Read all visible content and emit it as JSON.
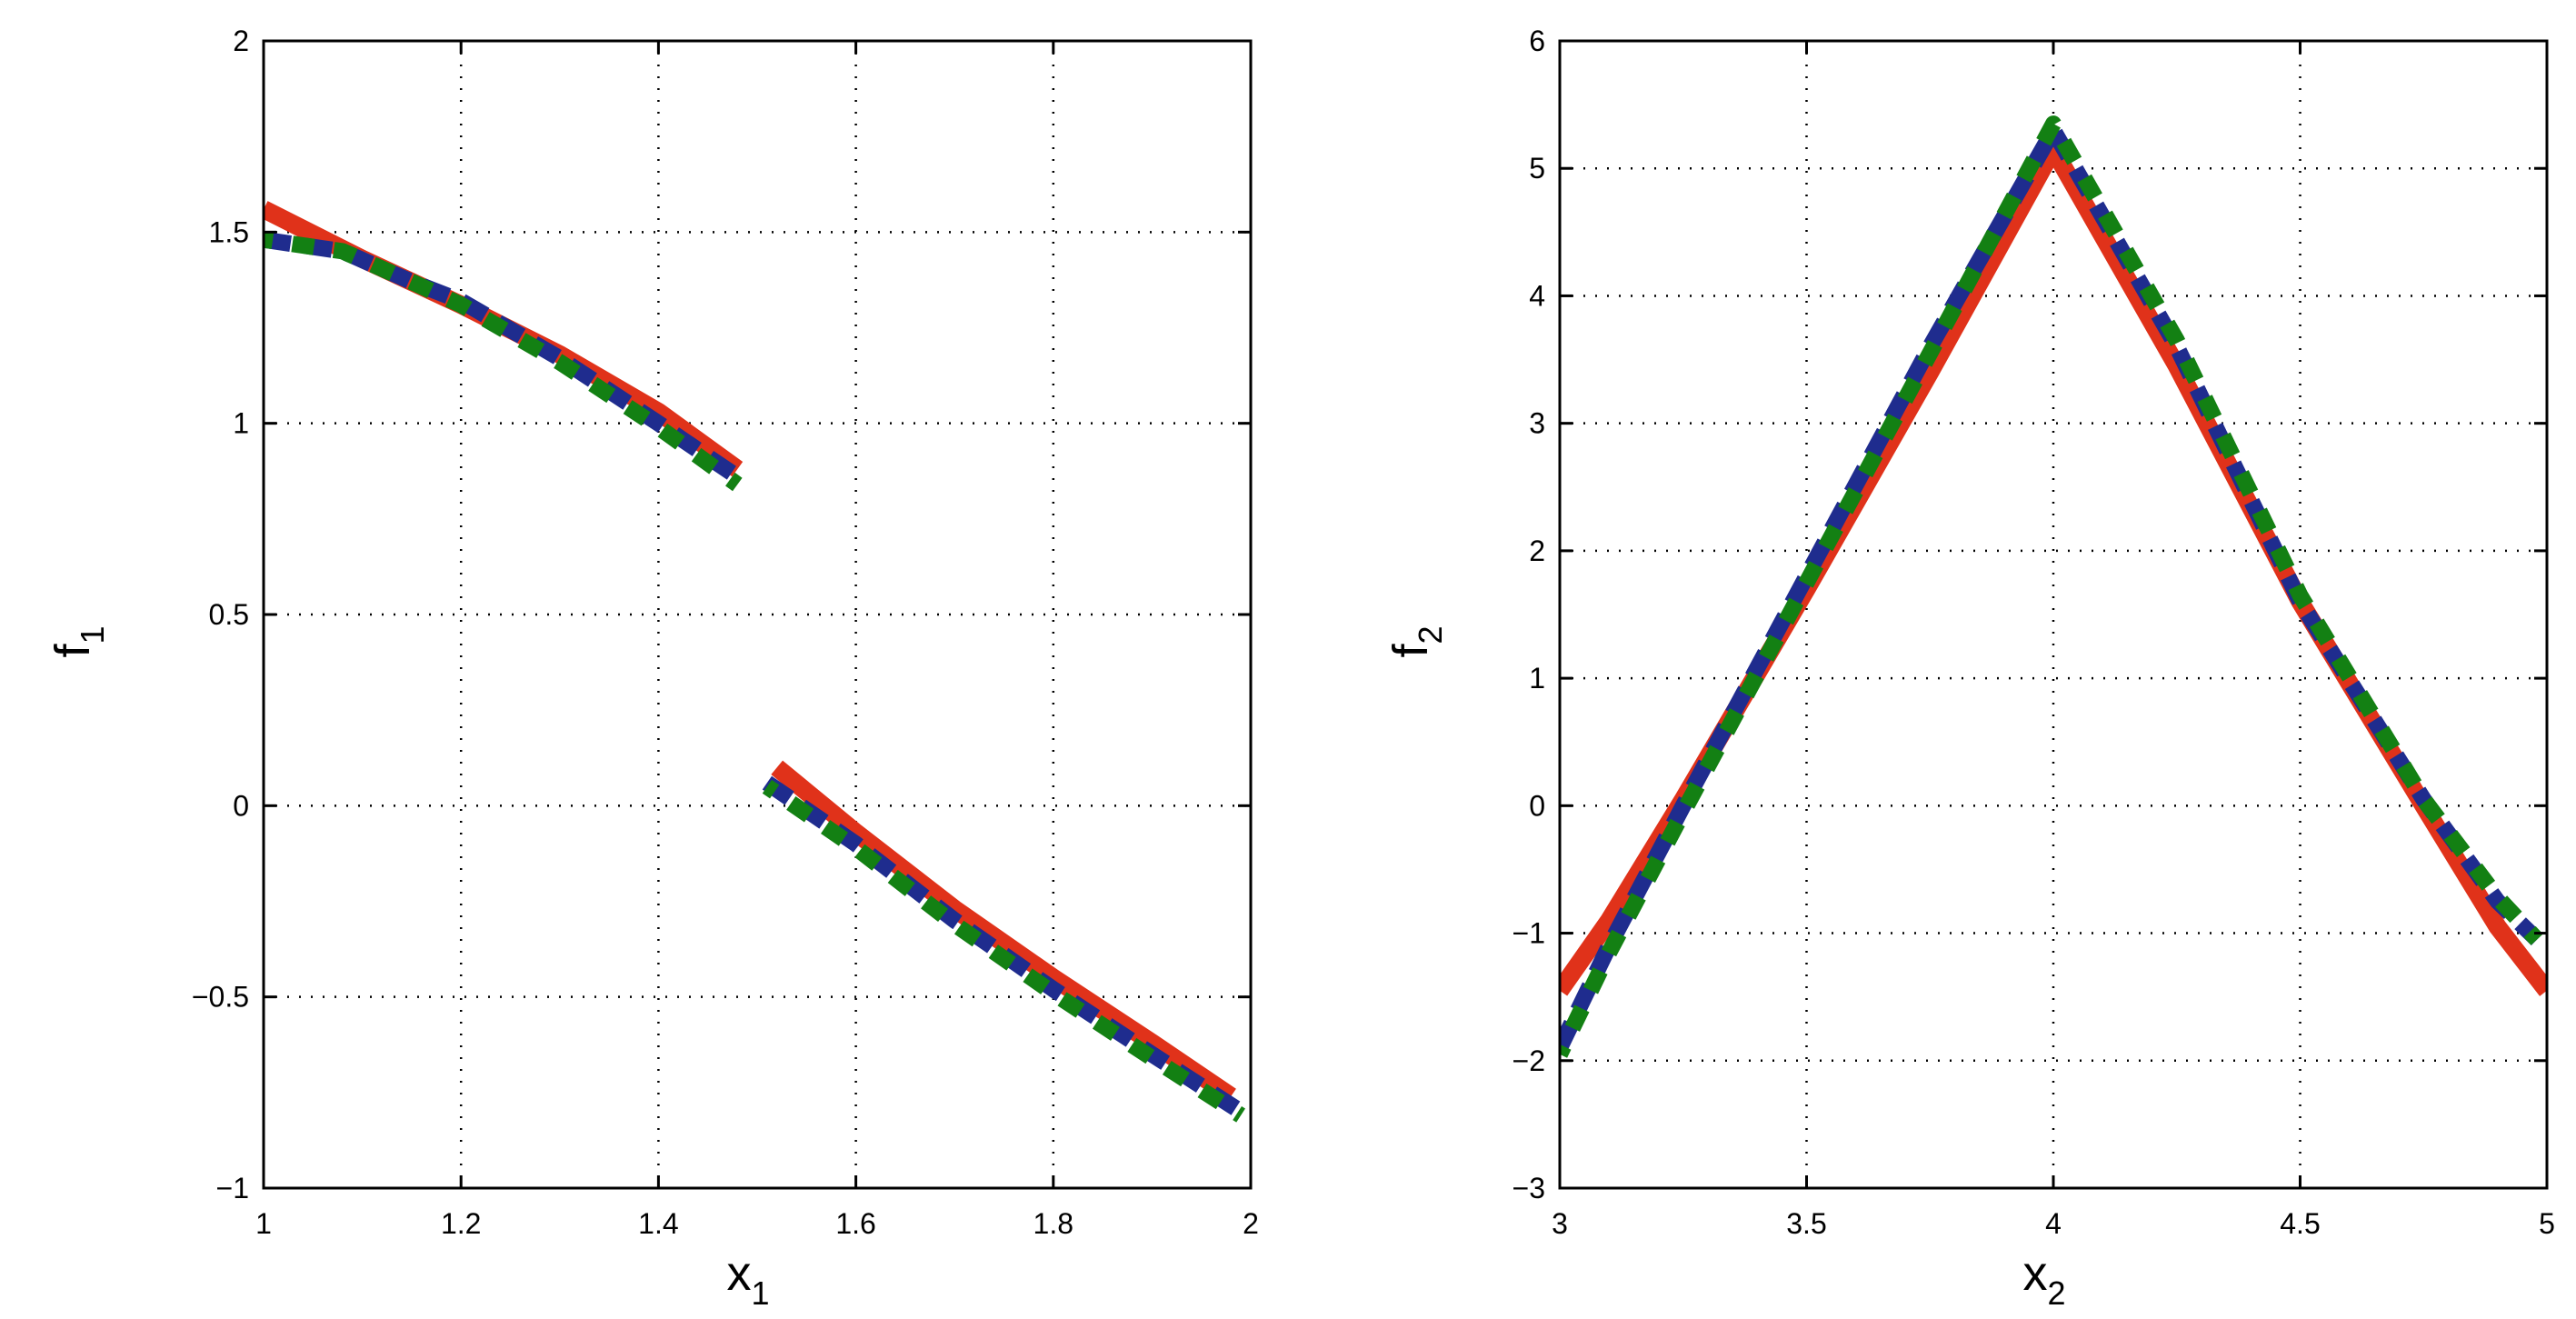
{
  "chart_data": [
    {
      "type": "line",
      "xlabel": "x",
      "xlabel_sub": "1",
      "ylabel": "f",
      "ylabel_sub": "1",
      "xlim": [
        1,
        2
      ],
      "ylim": [
        -1,
        2
      ],
      "xticks": [
        1,
        1.2,
        1.4,
        1.6,
        1.8,
        2
      ],
      "xtick_labels": [
        "1",
        "1.2",
        "1.4",
        "1.6",
        "1.8",
        "2"
      ],
      "yticks": [
        -1,
        -0.5,
        0,
        0.5,
        1,
        1.5,
        2
      ],
      "ytick_labels": [
        "−1",
        "−0.5",
        "0",
        "0.5",
        "1",
        "1.5",
        "2"
      ],
      "grid": true,
      "series": [
        {
          "color": "#e0321a",
          "style": "solid",
          "segments": [
            {
              "x": [
                1.0,
                1.1,
                1.2,
                1.3,
                1.4,
                1.48
              ],
              "y": [
                1.56,
                1.43,
                1.31,
                1.18,
                1.03,
                0.88
              ]
            },
            {
              "x": [
                1.52,
                1.6,
                1.7,
                1.8,
                1.9,
                1.98
              ],
              "y": [
                0.1,
                -0.07,
                -0.27,
                -0.45,
                -0.62,
                -0.76
              ]
            }
          ]
        },
        {
          "color": "#1f2c8e",
          "style": "dashed",
          "segments": [
            {
              "x": [
                1.0,
                1.08,
                1.15,
                1.2,
                1.3,
                1.4,
                1.48
              ],
              "y": [
                1.48,
                1.45,
                1.37,
                1.32,
                1.17,
                1.0,
                0.86
              ]
            },
            {
              "x": [
                1.51,
                1.6,
                1.7,
                1.8,
                1.9,
                1.99
              ],
              "y": [
                0.06,
                -0.1,
                -0.3,
                -0.48,
                -0.65,
                -0.8
              ]
            }
          ]
        },
        {
          "color": "#138013",
          "style": "dashed",
          "segments": [
            {
              "x": [
                1.0,
                1.08,
                1.15,
                1.2,
                1.3,
                1.4,
                1.48
              ],
              "y": [
                1.48,
                1.45,
                1.37,
                1.31,
                1.16,
                0.99,
                0.84
              ]
            },
            {
              "x": [
                1.51,
                1.6,
                1.7,
                1.8,
                1.9,
                1.99
              ],
              "y": [
                0.05,
                -0.11,
                -0.31,
                -0.49,
                -0.66,
                -0.81
              ]
            }
          ]
        }
      ]
    },
    {
      "type": "line",
      "xlabel": "x",
      "xlabel_sub": "2",
      "ylabel": "f",
      "ylabel_sub": "2",
      "xlim": [
        3,
        5
      ],
      "ylim": [
        -3,
        6
      ],
      "xticks": [
        3,
        3.5,
        4,
        4.5,
        5
      ],
      "xtick_labels": [
        "3",
        "3.5",
        "4",
        "4.5",
        "5"
      ],
      "yticks": [
        -3,
        -2,
        -1,
        0,
        1,
        2,
        3,
        4,
        5,
        6
      ],
      "ytick_labels": [
        "−3",
        "−2",
        "−1",
        "0",
        "1",
        "2",
        "3",
        "4",
        "5",
        "6"
      ],
      "grid": true,
      "series": [
        {
          "color": "#e0321a",
          "style": "solid",
          "segments": [
            {
              "x": [
                3.0,
                3.1,
                3.25,
                3.5,
                3.75,
                4.0,
                4.25,
                4.5,
                4.75,
                4.9,
                5.0
              ],
              "y": [
                -1.45,
                -0.9,
                0.05,
                1.7,
                3.4,
                5.15,
                3.45,
                1.6,
                0.0,
                -0.95,
                -1.45
              ]
            }
          ]
        },
        {
          "color": "#1f2c8e",
          "style": "dashed",
          "segments": [
            {
              "x": [
                3.0,
                3.1,
                3.25,
                3.5,
                3.75,
                4.0,
                4.25,
                4.5,
                4.75,
                4.9,
                4.98
              ],
              "y": [
                -1.9,
                -1.1,
                0.0,
                1.8,
                3.6,
                5.3,
                3.6,
                1.6,
                0.05,
                -0.75,
                -1.05
              ]
            }
          ]
        },
        {
          "color": "#138013",
          "style": "dashed",
          "segments": [
            {
              "x": [
                3.0,
                3.1,
                3.25,
                3.5,
                3.75,
                4.0,
                4.25,
                4.5,
                4.75,
                4.9,
                4.98
              ],
              "y": [
                -1.95,
                -1.15,
                -0.05,
                1.75,
                3.55,
                5.35,
                3.65,
                1.65,
                0.05,
                -0.72,
                -1.05
              ]
            }
          ]
        }
      ]
    }
  ]
}
